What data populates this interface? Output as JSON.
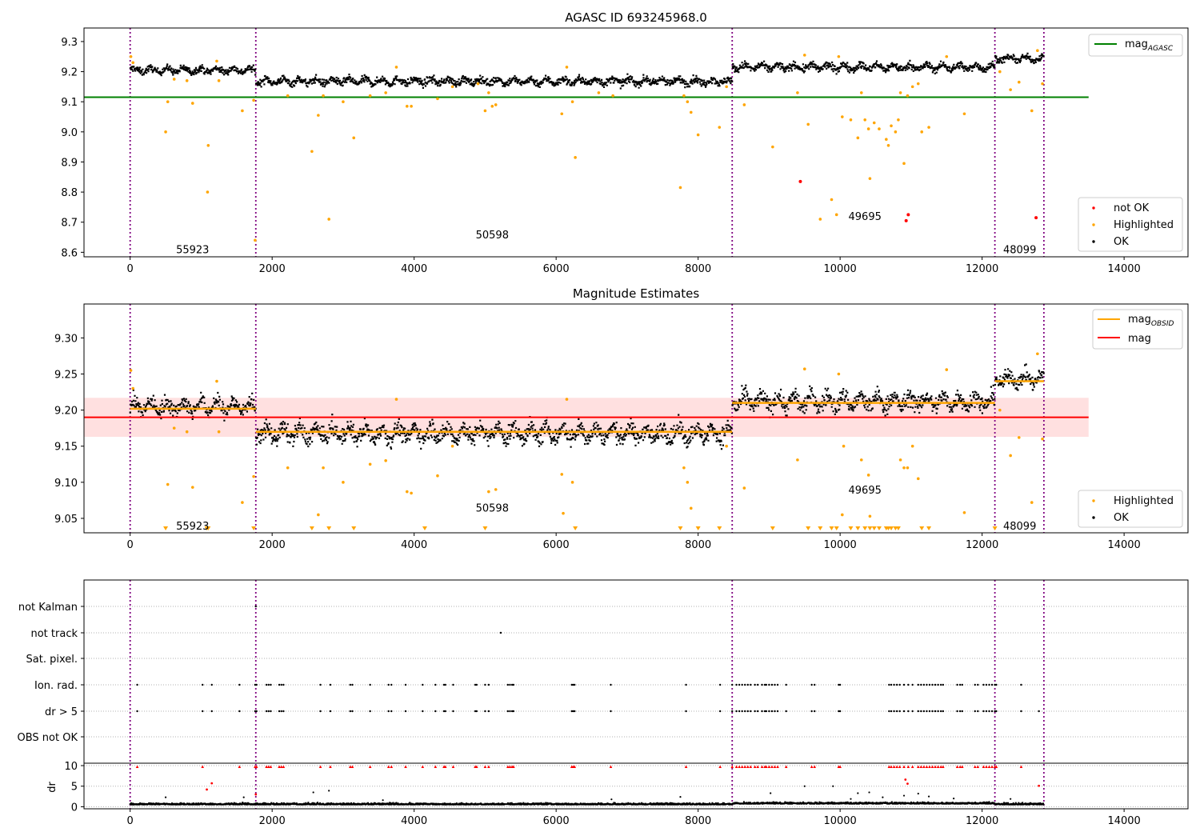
{
  "chart_data": [
    {
      "type": "scatter",
      "title": "AGASC ID 693245968.0",
      "xlim": [
        -650,
        14900
      ],
      "ylim": [
        8.585,
        9.345
      ],
      "xticks": [
        0,
        2000,
        4000,
        6000,
        8000,
        10000,
        12000,
        14000
      ],
      "yticks": [
        8.6,
        8.7,
        8.8,
        8.9,
        9.0,
        9.1,
        9.2,
        9.3
      ],
      "ytick_labels": [
        "8.6",
        "8.7",
        "8.8",
        "8.9",
        "9.0",
        "9.1",
        "9.2",
        "9.3"
      ],
      "obsid_boundaries": [
        0,
        1770,
        8480,
        12180,
        12870
      ],
      "obsid_labels": [
        {
          "text": "55923",
          "x": 880,
          "y": 8.61
        },
        {
          "text": "50598",
          "x": 5100,
          "y": 8.66
        },
        {
          "text": "49695",
          "x": 10350,
          "y": 8.72
        },
        {
          "text": "48099",
          "x": 12530,
          "y": 8.61
        }
      ],
      "mag_agasc": {
        "value": 9.115,
        "x_range": [
          -650,
          13500
        ],
        "color": "#008000"
      },
      "ok_segments": [
        {
          "x0": 0,
          "x1": 1770,
          "mean": 9.205,
          "spread": 0.02
        },
        {
          "x0": 1770,
          "x1": 8480,
          "mean": 9.168,
          "spread": 0.022
        },
        {
          "x0": 8480,
          "x1": 12180,
          "mean": 9.215,
          "spread": 0.022
        },
        {
          "x0": 12180,
          "x1": 12870,
          "mean": 9.243,
          "spread": 0.018
        }
      ],
      "highlighted_points": [
        [
          10,
          9.25
        ],
        [
          40,
          9.23
        ],
        [
          500,
          9.0
        ],
        [
          530,
          9.1
        ],
        [
          620,
          9.175
        ],
        [
          800,
          9.17
        ],
        [
          880,
          9.095
        ],
        [
          1100,
          8.955
        ],
        [
          1090,
          8.8
        ],
        [
          1220,
          9.235
        ],
        [
          1250,
          9.17
        ],
        [
          1580,
          9.07
        ],
        [
          1740,
          9.105
        ],
        [
          1760,
          8.64
        ],
        [
          2220,
          9.12
        ],
        [
          2560,
          8.935
        ],
        [
          2650,
          9.055
        ],
        [
          2720,
          9.12
        ],
        [
          2800,
          8.71
        ],
        [
          3000,
          9.1
        ],
        [
          3150,
          8.98
        ],
        [
          3380,
          9.12
        ],
        [
          3600,
          9.13
        ],
        [
          3750,
          9.215
        ],
        [
          3900,
          9.085
        ],
        [
          3960,
          9.085
        ],
        [
          4330,
          9.11
        ],
        [
          4540,
          9.15
        ],
        [
          4900,
          9.16
        ],
        [
          5000,
          9.07
        ],
        [
          5050,
          9.13
        ],
        [
          5100,
          9.085
        ],
        [
          5150,
          9.09
        ],
        [
          6080,
          9.06
        ],
        [
          6150,
          9.215
        ],
        [
          6230,
          9.1
        ],
        [
          6270,
          8.915
        ],
        [
          6600,
          9.13
        ],
        [
          6800,
          9.12
        ],
        [
          7750,
          8.815
        ],
        [
          7800,
          9.12
        ],
        [
          7850,
          9.1
        ],
        [
          7900,
          9.065
        ],
        [
          8000,
          8.99
        ],
        [
          8300,
          9.015
        ],
        [
          8400,
          9.15
        ],
        [
          8650,
          9.09
        ],
        [
          9050,
          8.95
        ],
        [
          9400,
          9.13
        ],
        [
          9500,
          9.255
        ],
        [
          9550,
          9.025
        ],
        [
          9720,
          8.71
        ],
        [
          9880,
          8.775
        ],
        [
          9950,
          8.725
        ],
        [
          9980,
          9.25
        ],
        [
          10030,
          9.05
        ],
        [
          10150,
          9.04
        ],
        [
          10250,
          8.98
        ],
        [
          10300,
          9.13
        ],
        [
          10350,
          9.04
        ],
        [
          10400,
          9.01
        ],
        [
          10420,
          8.845
        ],
        [
          10480,
          9.03
        ],
        [
          10550,
          9.01
        ],
        [
          10650,
          8.975
        ],
        [
          10680,
          8.955
        ],
        [
          10720,
          9.02
        ],
        [
          10780,
          9.0
        ],
        [
          10820,
          9.04
        ],
        [
          10850,
          9.13
        ],
        [
          10900,
          8.895
        ],
        [
          10950,
          9.12
        ],
        [
          11020,
          9.15
        ],
        [
          11100,
          9.16
        ],
        [
          11150,
          9.0
        ],
        [
          11250,
          9.015
        ],
        [
          11500,
          9.25
        ],
        [
          11750,
          9.06
        ],
        [
          12250,
          9.2
        ],
        [
          12400,
          9.14
        ],
        [
          12520,
          9.165
        ],
        [
          12700,
          9.07
        ],
        [
          12780,
          9.27
        ],
        [
          12850,
          9.16
        ]
      ],
      "not_ok_points": [
        [
          9440,
          8.835
        ],
        [
          10930,
          8.705
        ],
        [
          10960,
          8.725
        ],
        [
          12760,
          8.715
        ]
      ],
      "legend_upper": {
        "position": "upper right",
        "entries": [
          {
            "label": "mag",
            "subscript": "AGASC",
            "color": "#008000"
          }
        ]
      },
      "legend_lower": {
        "position": "lower right",
        "entries": [
          {
            "label": "not OK",
            "color": "#ff0000"
          },
          {
            "label": "Highlighted",
            "color": "#ffa500"
          },
          {
            "label": "OK",
            "color": "#000000"
          }
        ]
      }
    },
    {
      "type": "scatter",
      "title": "Magnitude Estimates",
      "xlim": [
        -650,
        14900
      ],
      "ylim": [
        9.03,
        9.347
      ],
      "xticks": [
        0,
        2000,
        4000,
        6000,
        8000,
        10000,
        12000,
        14000
      ],
      "yticks": [
        9.05,
        9.1,
        9.15,
        9.2,
        9.25,
        9.3
      ],
      "ytick_labels": [
        "9.05",
        "9.10",
        "9.15",
        "9.20",
        "9.25",
        "9.30"
      ],
      "obsid_boundaries": [
        0,
        1770,
        8480,
        12180,
        12870
      ],
      "obsid_labels": [
        {
          "text": "55923",
          "x": 880,
          "y": 9.04
        },
        {
          "text": "50598",
          "x": 5100,
          "y": 9.065
        },
        {
          "text": "49695",
          "x": 10350,
          "y": 9.09
        },
        {
          "text": "48099",
          "x": 12530,
          "y": 9.04
        }
      ],
      "mag": {
        "value": 9.19,
        "band": [
          9.163,
          9.217
        ],
        "x_range": [
          -650,
          13500
        ],
        "color": "#ff0000"
      },
      "mag_obsid": [
        {
          "x0": 0,
          "x1": 1770,
          "value": 9.202
        },
        {
          "x0": 1770,
          "x1": 8480,
          "value": 9.17
        },
        {
          "x0": 8480,
          "x1": 12180,
          "value": 9.21
        },
        {
          "x0": 12180,
          "x1": 12870,
          "value": 9.24
        }
      ],
      "ok_segments": [
        {
          "x0": 0,
          "x1": 1770,
          "mean": 9.205,
          "spread": 0.02
        },
        {
          "x0": 1770,
          "x1": 8480,
          "mean": 9.168,
          "spread": 0.022
        },
        {
          "x0": 8480,
          "x1": 12180,
          "mean": 9.212,
          "spread": 0.022
        },
        {
          "x0": 12180,
          "x1": 12870,
          "mean": 9.243,
          "spread": 0.018
        }
      ],
      "highlighted_points": [
        [
          10,
          9.255
        ],
        [
          40,
          9.23
        ],
        [
          530,
          9.097
        ],
        [
          620,
          9.175
        ],
        [
          800,
          9.17
        ],
        [
          880,
          9.093
        ],
        [
          1220,
          9.24
        ],
        [
          1250,
          9.17
        ],
        [
          1580,
          9.072
        ],
        [
          1740,
          9.108
        ],
        [
          2220,
          9.12
        ],
        [
          2650,
          9.055
        ],
        [
          2720,
          9.12
        ],
        [
          3000,
          9.1
        ],
        [
          3380,
          9.125
        ],
        [
          3600,
          9.13
        ],
        [
          3750,
          9.215
        ],
        [
          3900,
          9.087
        ],
        [
          3960,
          9.085
        ],
        [
          4330,
          9.109
        ],
        [
          4540,
          9.15
        ],
        [
          5050,
          9.087
        ],
        [
          5150,
          9.09
        ],
        [
          6080,
          9.111
        ],
        [
          6150,
          9.215
        ],
        [
          6230,
          9.1
        ],
        [
          6100,
          9.057
        ],
        [
          7800,
          9.12
        ],
        [
          7850,
          9.1
        ],
        [
          7900,
          9.064
        ],
        [
          8400,
          9.15
        ],
        [
          8650,
          9.092
        ],
        [
          9400,
          9.131
        ],
        [
          9500,
          9.257
        ],
        [
          9980,
          9.25
        ],
        [
          10030,
          9.055
        ],
        [
          10050,
          9.15
        ],
        [
          10300,
          9.131
        ],
        [
          10400,
          9.11
        ],
        [
          10420,
          9.053
        ],
        [
          10850,
          9.131
        ],
        [
          10900,
          9.12
        ],
        [
          10950,
          9.12
        ],
        [
          11020,
          9.15
        ],
        [
          11100,
          9.105
        ],
        [
          11500,
          9.256
        ],
        [
          11750,
          9.058
        ],
        [
          12250,
          9.2
        ],
        [
          12400,
          9.137
        ],
        [
          12520,
          9.162
        ],
        [
          12700,
          9.072
        ],
        [
          12780,
          9.278
        ],
        [
          12850,
          9.16
        ]
      ],
      "highlighted_clipped_x": [
        500,
        1080,
        1100,
        1740,
        2560,
        2800,
        3150,
        4150,
        5000,
        6270,
        7750,
        8000,
        8300,
        9050,
        9550,
        9720,
        9880,
        9950,
        10150,
        10250,
        10350,
        10420,
        10480,
        10550,
        10650,
        10680,
        10720,
        10780,
        10820,
        11150,
        11250,
        12180
      ],
      "legend_upper": {
        "position": "upper right",
        "entries": [
          {
            "label": "mag",
            "subscript": "OBSID",
            "color": "#ffa500"
          },
          {
            "label": "mag",
            "subscript": "",
            "color": "#ff0000"
          }
        ]
      },
      "legend_lower": {
        "position": "lower right",
        "entries": [
          {
            "label": "Highlighted",
            "color": "#ffa500"
          },
          {
            "label": "OK",
            "color": "#000000"
          }
        ]
      }
    },
    {
      "type": "scatter",
      "xlim": [
        -650,
        14900
      ],
      "xticks": [
        0,
        2000,
        4000,
        6000,
        8000,
        10000,
        12000,
        14000
      ],
      "obsid_boundaries": [
        0,
        1770,
        8480,
        12180,
        12870
      ],
      "flag_rows": [
        "not Kalman",
        "not track",
        "Sat. pixel.",
        "Ion. rad.",
        "dr > 5",
        "OBS not OK"
      ],
      "flag_points": {
        "not Kalman": [
          1770
        ],
        "not track": [
          5220
        ],
        "Sat. pixel.": [],
        "Ion. rad.": [
          100,
          1020,
          1150,
          1540,
          1760,
          1780,
          1920,
          1950,
          1980,
          2100,
          2130,
          2160,
          2680,
          2820,
          3100,
          3130,
          3380,
          3640,
          3680,
          3880,
          4120,
          4300,
          4420,
          4440,
          4550,
          4860,
          4880,
          5000,
          5050,
          5320,
          5350,
          5380,
          5400,
          6220,
          6240,
          6260,
          6770,
          7830,
          8310,
          8480,
          8540,
          8580,
          8620,
          8660,
          8700,
          8740,
          8800,
          8840,
          8900,
          8940,
          8960,
          9000,
          9040,
          9080,
          9120,
          9240,
          9600,
          9640,
          9980,
          10000,
          10690,
          10720,
          10760,
          10800,
          10840,
          10900,
          10960,
          11020,
          11100,
          11140,
          11180,
          11220,
          11260,
          11300,
          11340,
          11380,
          11420,
          11450,
          11650,
          11690,
          11720,
          11900,
          11940,
          12020,
          12060,
          12100,
          12140,
          12180,
          12200,
          12550
        ],
        "dr > 5": [
          100,
          1020,
          1150,
          1540,
          1760,
          1780,
          1920,
          1950,
          1980,
          2100,
          2130,
          2160,
          2680,
          2820,
          3100,
          3130,
          3380,
          3640,
          3680,
          3880,
          4120,
          4300,
          4420,
          4440,
          4550,
          4860,
          4880,
          5000,
          5050,
          5320,
          5350,
          5380,
          5400,
          6220,
          6240,
          6260,
          6770,
          7830,
          8310,
          8480,
          8540,
          8580,
          8620,
          8660,
          8700,
          8740,
          8800,
          8840,
          8900,
          8940,
          8960,
          9000,
          9040,
          9080,
          9120,
          9240,
          9600,
          9640,
          9980,
          10000,
          10690,
          10720,
          10760,
          10800,
          10840,
          10900,
          10960,
          11020,
          11100,
          11140,
          11180,
          11220,
          11260,
          11300,
          11340,
          11380,
          11420,
          11450,
          11650,
          11690,
          11720,
          11900,
          11940,
          12020,
          12060,
          12100,
          12140,
          12180,
          12200,
          12550,
          12800
        ],
        "OBS not OK": []
      },
      "dr_ylabel": "dr",
      "dr_ylim": [
        -0.5,
        10.2
      ],
      "dr_yticks": [
        0,
        5,
        10
      ],
      "dr_red_clipped_x": [
        100,
        1020,
        1540,
        1760,
        1780,
        1920,
        1950,
        1980,
        2100,
        2130,
        2160,
        2680,
        2820,
        3100,
        3130,
        3380,
        3640,
        3680,
        3880,
        4120,
        4300,
        4420,
        4440,
        4550,
        4860,
        4880,
        5000,
        5050,
        5320,
        5350,
        5380,
        5400,
        6220,
        6240,
        6260,
        6770,
        7830,
        8310,
        8480,
        8540,
        8580,
        8620,
        8660,
        8700,
        8740,
        8800,
        8840,
        8900,
        8940,
        8960,
        9000,
        9040,
        9080,
        9120,
        9240,
        9600,
        9640,
        9980,
        10000,
        10690,
        10720,
        10760,
        10800,
        10840,
        10900,
        10960,
        11020,
        11100,
        11140,
        11180,
        11220,
        11260,
        11300,
        11340,
        11380,
        11420,
        11450,
        11650,
        11690,
        11720,
        11900,
        11940,
        12020,
        12060,
        12100,
        12140,
        12180,
        12200,
        12550
      ],
      "dr_red_points": [
        [
          1080,
          4.2
        ],
        [
          1150,
          5.7
        ],
        [
          1770,
          3.0
        ],
        [
          10920,
          6.6
        ],
        [
          10950,
          5.6
        ],
        [
          12800,
          5.1
        ]
      ],
      "dr_black_outliers": [
        [
          500,
          2.3
        ],
        [
          1600,
          2.3
        ],
        [
          2580,
          3.5
        ],
        [
          2800,
          3.9
        ],
        [
          3560,
          1.6
        ],
        [
          6780,
          1.8
        ],
        [
          7750,
          2.4
        ],
        [
          9020,
          3.3
        ],
        [
          9500,
          5.0
        ],
        [
          9900,
          5.0
        ],
        [
          10150,
          1.9
        ],
        [
          10250,
          3.3
        ],
        [
          10410,
          3.5
        ],
        [
          10600,
          2.3
        ],
        [
          10900,
          2.7
        ],
        [
          11100,
          3.2
        ],
        [
          11250,
          2.5
        ],
        [
          11600,
          2.0
        ],
        [
          12400,
          1.9
        ]
      ],
      "dr_baseline": {
        "mean": 0.5,
        "spread": 0.35
      }
    }
  ]
}
